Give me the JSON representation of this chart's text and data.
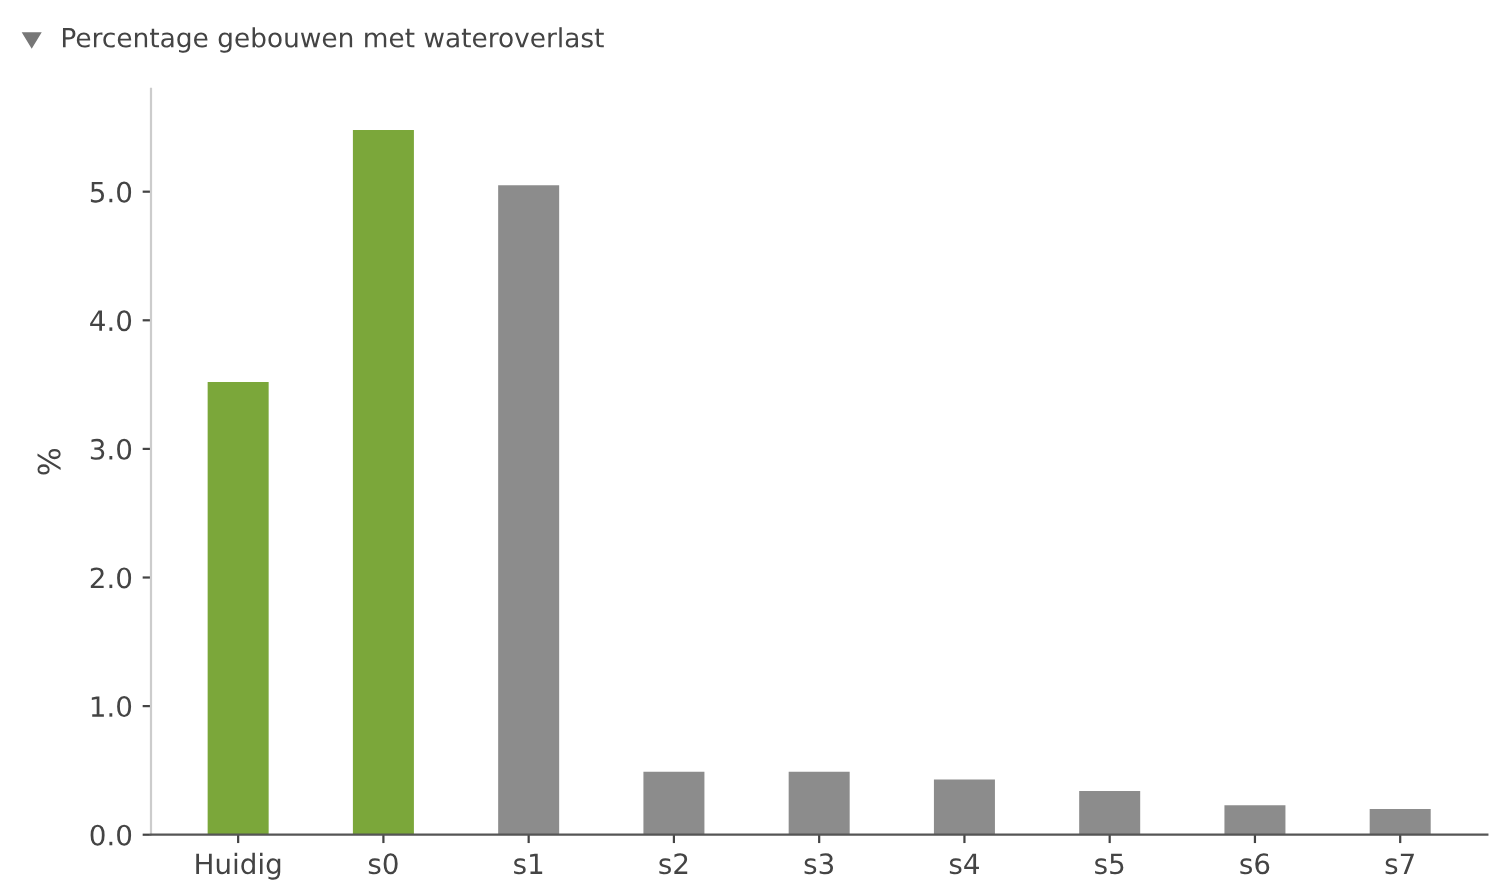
{
  "chart_data": {
    "type": "bar",
    "title": "Percentage gebouwen met wateroverlast",
    "ylabel": "%",
    "categories": [
      "Huidig",
      "s0",
      "s1",
      "s2",
      "s3",
      "s4",
      "s5",
      "s6",
      "s7"
    ],
    "values": [
      3.52,
      5.48,
      5.05,
      0.49,
      0.49,
      0.43,
      0.34,
      0.23,
      0.2
    ],
    "colors": [
      "#7ba73a",
      "#7ba73a",
      "#8c8c8c",
      "#8c8c8c",
      "#8c8c8c",
      "#8c8c8c",
      "#8c8c8c",
      "#8c8c8c",
      "#8c8c8c"
    ],
    "ylim": [
      0,
      5.8
    ],
    "yticks": [
      {
        "value": 0,
        "label": "0.0"
      },
      {
        "value": 1,
        "label": "1.0"
      },
      {
        "value": 2,
        "label": "2.0"
      },
      {
        "value": 3,
        "label": "3.0"
      },
      {
        "value": 4,
        "label": "4.0"
      },
      {
        "value": 5,
        "label": "5.0"
      }
    ],
    "grid": false,
    "legend": false
  }
}
